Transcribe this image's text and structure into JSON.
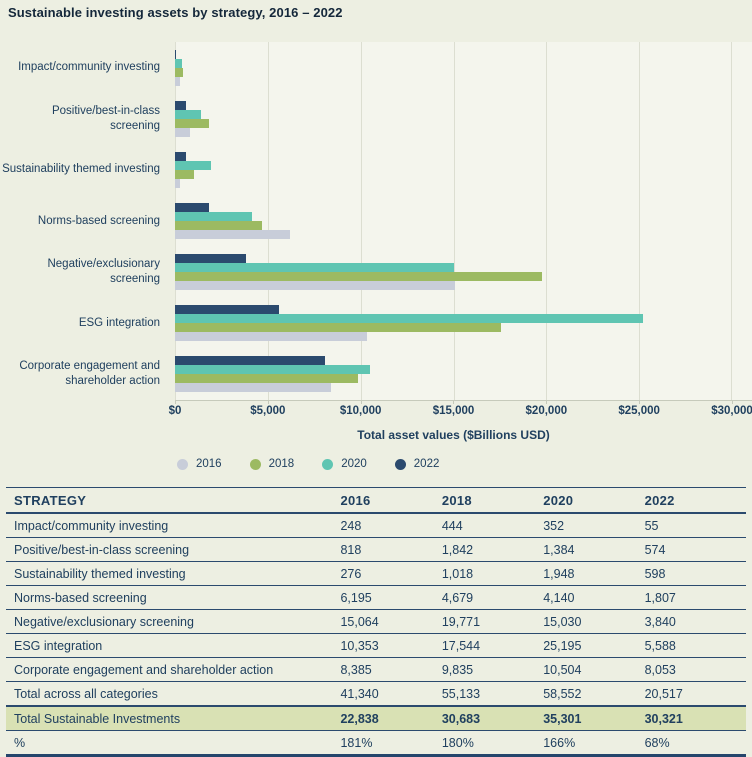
{
  "title": "Sustainable investing assets by strategy, 2016 – 2022",
  "chart_data": {
    "type": "bar",
    "orientation": "horizontal",
    "title": "Sustainable investing assets by strategy, 2016 – 2022",
    "xlabel": "Total asset values ($Billions USD)",
    "xlim": [
      0,
      30000
    ],
    "grid": true,
    "legend_position": "bottom",
    "bar_order_top_to_bottom": [
      "2022",
      "2020",
      "2018",
      "2016"
    ],
    "x_ticks": [
      "$0",
      "$5,000",
      "$10,000",
      "$15,000",
      "$20,000",
      "$25,000",
      "$30,000"
    ],
    "categories": [
      "Impact/community investing",
      "Positive/best-in-class screening",
      "Sustainability themed investing",
      "Norms-based screening",
      "Negative/exclusionary screening",
      "ESG integration",
      "Corporate engagement and shareholder action"
    ],
    "series": [
      {
        "name": "2016",
        "color": "#c8cdd9",
        "values": [
          248,
          818,
          276,
          6195,
          15064,
          10353,
          8385
        ]
      },
      {
        "name": "2018",
        "color": "#9cba62",
        "values": [
          444,
          1842,
          1018,
          4679,
          19771,
          17544,
          9835
        ]
      },
      {
        "name": "2020",
        "color": "#5fc5b2",
        "values": [
          352,
          1384,
          1948,
          4140,
          15030,
          25195,
          10504
        ]
      },
      {
        "name": "2022",
        "color": "#2b4a6e",
        "values": [
          55,
          574,
          598,
          1807,
          3840,
          5588,
          8053
        ]
      }
    ]
  },
  "table": {
    "headers": [
      "STRATEGY",
      "2016",
      "2018",
      "2020",
      "2022"
    ],
    "rows": [
      {
        "label": "Impact/community investing",
        "values": [
          "248",
          "444",
          "352",
          "55"
        ]
      },
      {
        "label": "Positive/best-in-class screening",
        "values": [
          "818",
          "1,842",
          "1,384",
          "574"
        ]
      },
      {
        "label": "Sustainability themed investing",
        "values": [
          "276",
          "1,018",
          "1,948",
          "598"
        ]
      },
      {
        "label": "Norms-based screening",
        "values": [
          "6,195",
          "4,679",
          "4,140",
          "1,807"
        ]
      },
      {
        "label": "Negative/exclusionary screening",
        "values": [
          "15,064",
          "19,771",
          "15,030",
          "3,840"
        ]
      },
      {
        "label": "ESG integration",
        "values": [
          "10,353",
          "17,544",
          "25,195",
          "5,588"
        ]
      },
      {
        "label": "Corporate engagement and shareholder action",
        "values": [
          "8,385",
          "9,835",
          "10,504",
          "8,053"
        ]
      },
      {
        "label": "Total across all categories",
        "values": [
          "41,340",
          "55,133",
          "58,552",
          "20,517"
        ]
      },
      {
        "label": "Total Sustainable Investments",
        "values": [
          "22,838",
          "30,683",
          "35,301",
          "30,321"
        ],
        "highlight": true
      },
      {
        "label": "%",
        "values": [
          "181%",
          "180%",
          "166%",
          "68%"
        ]
      }
    ]
  },
  "colors": {
    "page_background": "#edefe2",
    "plot_background": "#f4f5ed",
    "gridline": "#dcded1",
    "axis_line": "#c6cabb",
    "text_navy": "#20405f",
    "table_line": "#2b4a6e",
    "highlight_row_background": "#d9e1b4"
  }
}
